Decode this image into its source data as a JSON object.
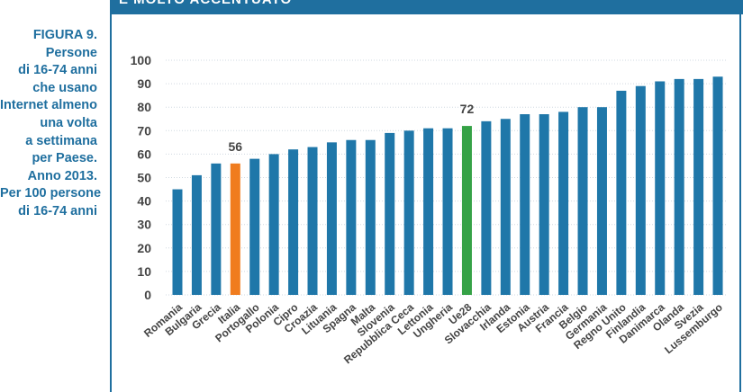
{
  "header": {
    "banner_text": "E MOLTO ACCENTUATO"
  },
  "caption": {
    "figure": "FIGURA 9.",
    "lines": [
      "Persone",
      "di 16-74 anni",
      "che usano",
      "Internet almeno",
      "una volta",
      "a settimana",
      "per Paese.",
      "Anno 2013.",
      "Per 100 persone",
      "di 16-74 anni"
    ]
  },
  "colors": {
    "accent": "#1f6f9f",
    "bar": "#1f77a9",
    "highlight_italia": "#f07c1e",
    "highlight_ue28": "#35a246",
    "grid": "#cfd8e0"
  },
  "chart_data": {
    "type": "bar",
    "categories": [
      "Romania",
      "Bulgaria",
      "Grecia",
      "Italia",
      "Portogallo",
      "Polonia",
      "Cipro",
      "Croazia",
      "Lituania",
      "Spagna",
      "Malta",
      "Slovenia",
      "Repubblica Ceca",
      "Lettonia",
      "Ungheria",
      "Ue28",
      "Slovacchia",
      "Irlanda",
      "Estonia",
      "Austria",
      "Francia",
      "Belgio",
      "Germania",
      "Regno Unito",
      "Finlandia",
      "Danimarca",
      "Olanda",
      "Svezia",
      "Lussemburgo"
    ],
    "values": [
      45,
      51,
      56,
      56,
      58,
      60,
      62,
      63,
      65,
      66,
      66,
      69,
      70,
      71,
      71,
      72,
      74,
      75,
      77,
      77,
      78,
      80,
      80,
      87,
      89,
      91,
      92,
      92,
      93
    ],
    "highlights": {
      "Italia": "#f07c1e",
      "Ue28": "#35a246"
    },
    "data_labels": [
      {
        "category": "Italia",
        "text": "56"
      },
      {
        "category": "Ue28",
        "text": "72"
      }
    ],
    "yticks": [
      "0",
      "10",
      "20",
      "30",
      "40",
      "50",
      "60",
      "70",
      "80",
      "90",
      "100"
    ],
    "ylim": [
      0,
      100
    ],
    "grid": true,
    "title": "",
    "xlabel": "",
    "ylabel": ""
  }
}
